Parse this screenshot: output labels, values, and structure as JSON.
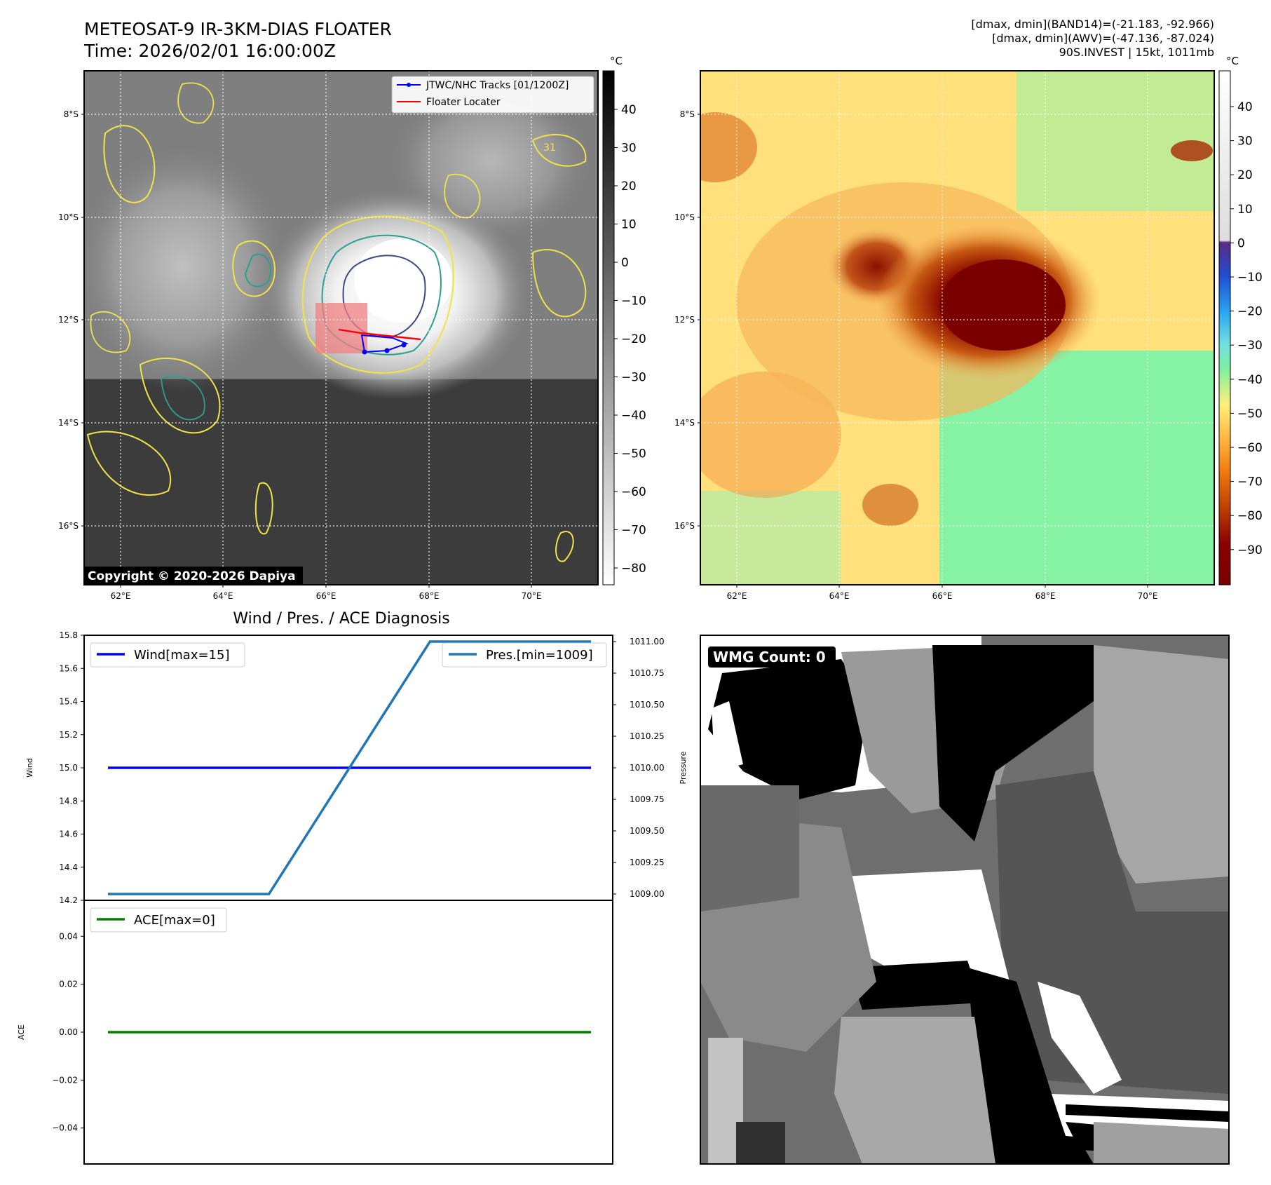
{
  "header": {
    "title": "METEOSAT-9 IR-3KM-DIAS FLOATER",
    "time": "Time: 2026/02/01 16:00:00Z",
    "info1": "[dmax, dmin](BAND14)=(-21.183, -92.966)",
    "info2": "[dmax, dmin](AWV)=(-47.136, -87.024)",
    "info3": "90S.INVEST | 15kt, 1011mb"
  },
  "map_axes": {
    "lat_labels": [
      "8°S",
      "10°S",
      "12°S",
      "14°S",
      "16°S"
    ],
    "lon_labels": [
      "62°E",
      "64°E",
      "66°E",
      "68°E",
      "70°E"
    ]
  },
  "ir_panel": {
    "legend_track": "JTWC/NHC Tracks [01/1200Z]",
    "legend_floater": "Floater Locater",
    "copyright": "Copyright © 2020-2026 Dapiya",
    "contour_label": "31",
    "colorbar_unit": "°C",
    "colorbar_ticks": [
      "40",
      "30",
      "20",
      "10",
      "0",
      "−10",
      "−20",
      "−30",
      "−40",
      "−50",
      "−60",
      "−70",
      "−80"
    ]
  },
  "awv_panel": {
    "colorbar_unit": "°C",
    "colorbar_ticks": [
      "40",
      "30",
      "20",
      "10",
      "0",
      "−10",
      "−20",
      "−30",
      "−40",
      "−50",
      "−60",
      "−70",
      "−80",
      "−90"
    ]
  },
  "wmg_panel": {
    "label": "WMG Count: 0"
  },
  "colors": {
    "wind": "#0000ff",
    "pressure": "#1f77b4",
    "ace": "#008000",
    "track": "#0000ff",
    "floater": "#ff0000"
  },
  "chart_data": [
    {
      "type": "line",
      "title": "Wind / Pres. / ACE Diagnosis",
      "ylabel": "Wind",
      "ylim": [
        14.2,
        15.8
      ],
      "yticks": [
        "14.2",
        "14.4",
        "14.6",
        "14.8",
        "15.0",
        "15.2",
        "15.4",
        "15.6",
        "15.8"
      ],
      "series": [
        {
          "name": "Wind[max=15]",
          "values": [
            15,
            15,
            15,
            15,
            15,
            15,
            15
          ]
        }
      ]
    },
    {
      "type": "line",
      "ylabel": "Pressure",
      "ylim": [
        1008.95,
        1011.05
      ],
      "yticks": [
        "1009.00",
        "1009.25",
        "1009.50",
        "1009.75",
        "1010.00",
        "1010.25",
        "1010.50",
        "1010.75",
        "1011.00"
      ],
      "series": [
        {
          "name": "Pres.[min=1009]",
          "values": [
            1009,
            1009,
            1009,
            1010,
            1011,
            1011,
            1011
          ]
        }
      ]
    },
    {
      "type": "line",
      "ylabel": "ACE",
      "ylim": [
        -0.055,
        0.055
      ],
      "yticks": [
        "−0.04",
        "−0.02",
        "0.00",
        "0.02",
        "0.04"
      ],
      "series": [
        {
          "name": "ACE[max=0]",
          "values": [
            0,
            0,
            0,
            0,
            0,
            0,
            0
          ]
        }
      ]
    }
  ]
}
